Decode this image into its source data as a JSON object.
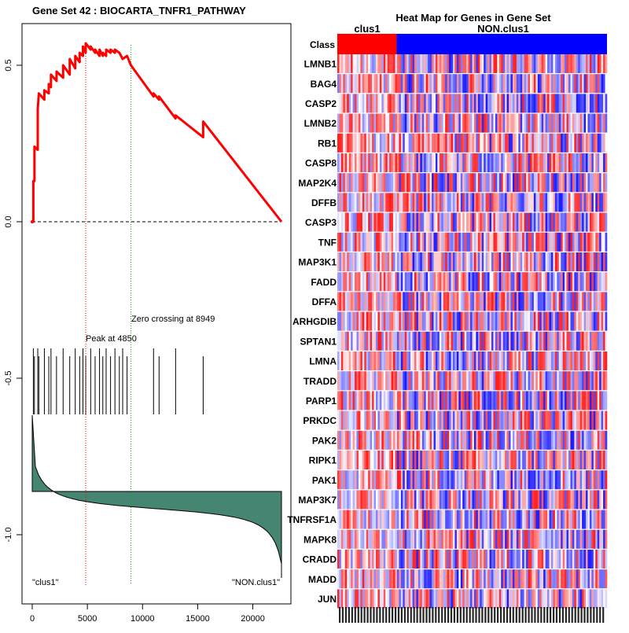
{
  "chart_data": [
    {
      "type": "line",
      "title": "Gene Set  42 : BIOCARTA_TNFR1_PATHWAY",
      "x_ticks": [
        0,
        5000,
        10000,
        15000,
        20000
      ],
      "x_tick_labels": [
        "0",
        "5000",
        "10000",
        "15000",
        "20000"
      ],
      "y_ticks": [
        0.5,
        0.0,
        -0.5,
        -1.0
      ],
      "y_tick_labels": [
        "0.5",
        "0.0",
        "-0.5",
        "-1.0"
      ],
      "xlim": [
        0,
        22700
      ],
      "ylim": [
        -1.18,
        0.62
      ],
      "series": [
        {
          "name": "running enrichment score",
          "color": "#ff0000",
          "points": [
            [
              0,
              0.0
            ],
            [
              100,
              0.0
            ],
            [
              100,
              0.13
            ],
            [
              200,
              0.13
            ],
            [
              200,
              0.24
            ],
            [
              500,
              0.23
            ],
            [
              500,
              0.36
            ],
            [
              600,
              0.41
            ],
            [
              1100,
              0.39
            ],
            [
              1100,
              0.42
            ],
            [
              1500,
              0.41
            ],
            [
              1500,
              0.44
            ],
            [
              1700,
              0.43
            ],
            [
              1700,
              0.47
            ],
            [
              2200,
              0.45
            ],
            [
              2200,
              0.48
            ],
            [
              2800,
              0.46
            ],
            [
              2800,
              0.5
            ],
            [
              3400,
              0.47
            ],
            [
              3400,
              0.52
            ],
            [
              3900,
              0.49
            ],
            [
              3900,
              0.53
            ],
            [
              4300,
              0.51
            ],
            [
              4300,
              0.54
            ],
            [
              4600,
              0.53
            ],
            [
              4600,
              0.56
            ],
            [
              4850,
              0.54
            ],
            [
              4850,
              0.57
            ],
            [
              5300,
              0.55
            ],
            [
              5300,
              0.56
            ],
            [
              5700,
              0.54
            ],
            [
              5700,
              0.55
            ],
            [
              6100,
              0.53
            ],
            [
              6100,
              0.55
            ],
            [
              6400,
              0.53
            ],
            [
              6400,
              0.54
            ],
            [
              6700,
              0.53
            ],
            [
              6700,
              0.55
            ],
            [
              7100,
              0.54
            ],
            [
              7100,
              0.55
            ],
            [
              7500,
              0.54
            ],
            [
              7500,
              0.55
            ],
            [
              7900,
              0.54
            ],
            [
              8200,
              0.52
            ],
            [
              8600,
              0.53
            ],
            [
              8949,
              0.5
            ],
            [
              11000,
              0.4
            ],
            [
              11000,
              0.41
            ],
            [
              11500,
              0.39
            ],
            [
              11500,
              0.4
            ],
            [
              13000,
              0.33
            ],
            [
              13000,
              0.34
            ],
            [
              15500,
              0.27
            ],
            [
              15500,
              0.32
            ],
            [
              22600,
              0.0
            ]
          ]
        }
      ],
      "zero_line_label": "0.0",
      "peak_x": 4850,
      "peak_label": "Peak at 4850",
      "zero_cross_x": 8949,
      "zero_cross_label": "Zero crossing at 8949",
      "hit_positions": [
        100,
        200,
        500,
        600,
        1100,
        1500,
        1700,
        2200,
        2800,
        3400,
        3900,
        4300,
        4600,
        4850,
        5300,
        5700,
        6100,
        6400,
        6700,
        7100,
        7500,
        7900,
        8200,
        8600,
        11000,
        11500,
        13000,
        15500
      ],
      "rank_metric_fill": "#478573",
      "left_class_label": "\"clus1\"",
      "right_class_label": "\"NON.clus1\""
    },
    {
      "type": "heatmap",
      "title": "Heat Map for Genes in Gene Set",
      "class_row_label": "Class",
      "class_groups": [
        {
          "name": "clus1",
          "color": "#ff0000",
          "fraction": 0.22
        },
        {
          "name": "NON.clus1",
          "color": "#0000ff",
          "fraction": 0.78
        }
      ],
      "genes": [
        "LMNB1",
        "BAG4",
        "CASP2",
        "LMNB2",
        "RB1",
        "CASP8",
        "MAP2K4",
        "DFFB",
        "CASP3",
        "TNF",
        "MAP3K1",
        "FADD",
        "DFFA",
        "ARHGDIB",
        "SPTAN1",
        "LMNA",
        "TRADD",
        "PARP1",
        "PRKDC",
        "PAK2",
        "RIPK1",
        "PAK1",
        "MAP3K7",
        "TNFRSF1A",
        "MAPK8",
        "CRADD",
        "MADD",
        "JUN"
      ],
      "palette": [
        "#0000ff",
        "#ffffff",
        "#ff0000"
      ]
    }
  ]
}
